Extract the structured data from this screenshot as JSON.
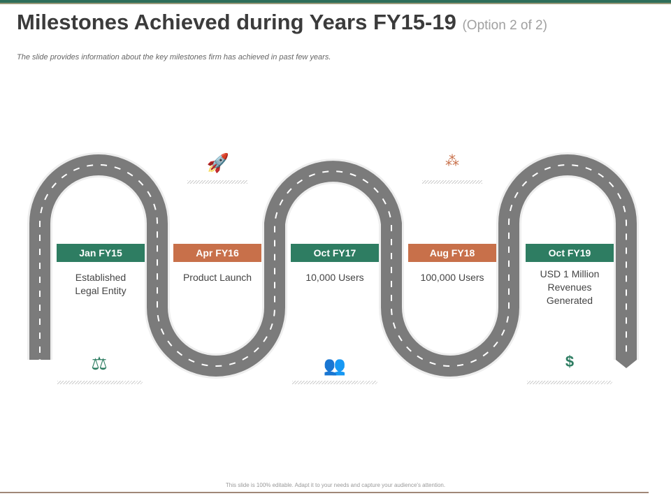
{
  "title": "Milestones Achieved during Years FY15-19",
  "title_option": "(Option 2 of 2)",
  "subtitle": "The slide provides information about the key milestones firm has achieved in past few years.",
  "colors": {
    "green": "#2e7d62",
    "orange": "#c8704a",
    "road": "#7b7b7b"
  },
  "milestones": [
    {
      "date": "Jan FY15",
      "text": "Established Legal Entity",
      "color": "green",
      "icon": "scales-hand-icon"
    },
    {
      "date": "Apr FY16",
      "text": "Product Launch",
      "color": "orange",
      "icon": "rocket-launch-icon"
    },
    {
      "date": "Oct FY17",
      "text": "10,000 Users",
      "color": "green",
      "icon": "users-group-icon"
    },
    {
      "date": "Aug FY18",
      "text": "100,000 Users",
      "color": "orange",
      "icon": "crowd-icon"
    },
    {
      "date": "Oct FY19",
      "text": "USD 1 Million Revenues Generated",
      "color": "green",
      "icon": "revenue-hand-icon"
    }
  ],
  "footer": "This slide is 100% editable. Adapt it to your needs and capture your audience's attention."
}
